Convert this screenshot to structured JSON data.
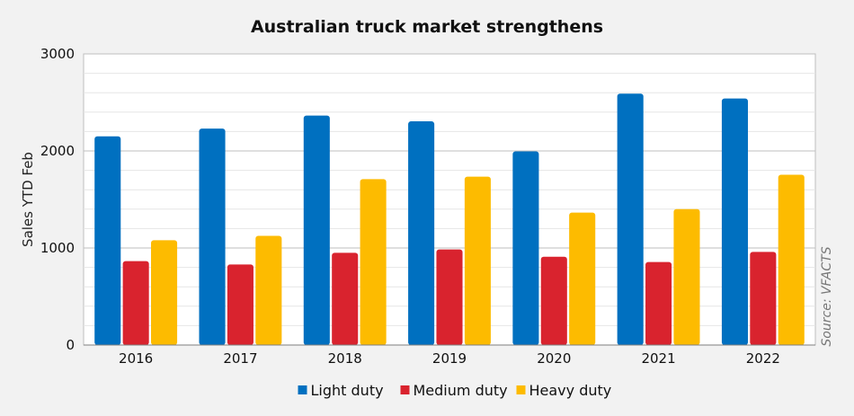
{
  "chart_data": {
    "type": "bar",
    "title": "Australian truck market strengthens",
    "ylabel": "Sales YTD Feb",
    "xlabel": "",
    "categories": [
      "2016",
      "2017",
      "2018",
      "2019",
      "2020",
      "2021",
      "2022"
    ],
    "series": [
      {
        "name": "Light duty",
        "color": "#0070c0",
        "values": [
          2150,
          2230,
          2365,
          2305,
          1995,
          2590,
          2540
        ]
      },
      {
        "name": "Medium duty",
        "color": "#d9232e",
        "values": [
          865,
          830,
          950,
          985,
          910,
          855,
          960
        ]
      },
      {
        "name": "Heavy duty",
        "color": "#fdbb00",
        "values": [
          1080,
          1125,
          1710,
          1735,
          1365,
          1400,
          1755
        ]
      }
    ],
    "ylim": [
      0,
      3000
    ],
    "yticks": [
      0,
      1000,
      2000,
      3000
    ],
    "grid": true,
    "legend": "bottom-center",
    "source": "Source: VFACTS"
  }
}
